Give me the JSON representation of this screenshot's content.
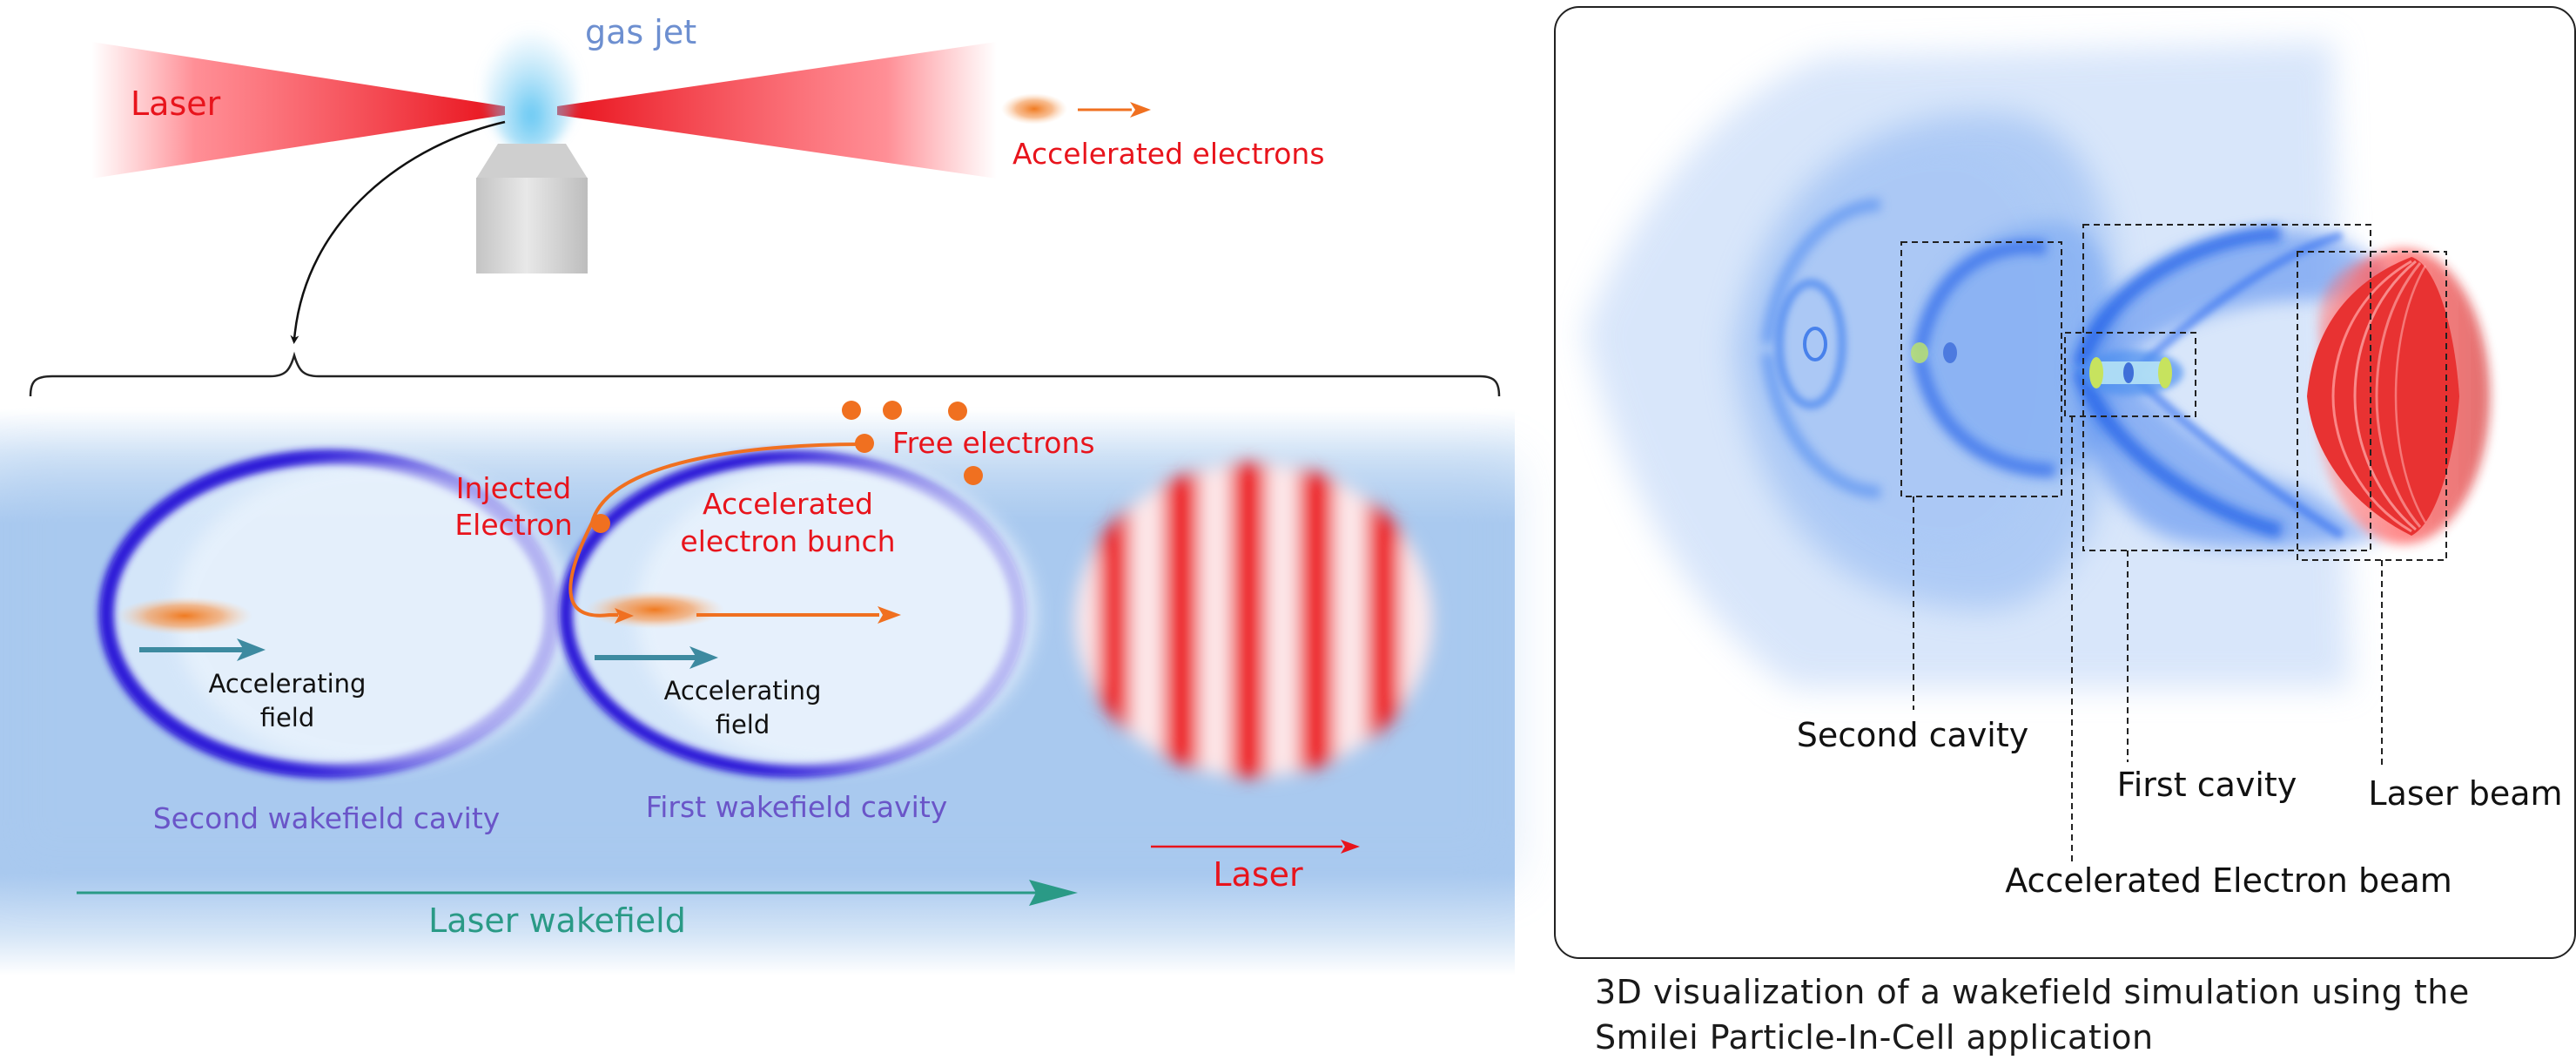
{
  "top": {
    "laser_label": "Laser",
    "gas_jet_label": "gas jet",
    "accelerated_electrons_label": "Accelerated electrons"
  },
  "left_panel": {
    "injected_electron_line1": "Injected",
    "injected_electron_line2": "Electron",
    "free_electrons_label": "Free electrons",
    "accelerated_bunch_line1": "Accelerated",
    "accelerated_bunch_line2": "electron bunch",
    "accelerating_field_line1": "Accelerating",
    "accelerating_field_line2": "field",
    "second_cavity_label": "Second wakefield cavity",
    "first_cavity_label": "First wakefield cavity",
    "laser_label": "Laser",
    "laser_wakefield_label": "Laser wakefield"
  },
  "right_panel": {
    "second_cavity_label": "Second cavity",
    "first_cavity_label": "First cavity",
    "laser_beam_label": "Laser beam",
    "accelerated_beam_label": "Accelerated Electron beam"
  },
  "caption": {
    "text": "3D visualization of a wakefield simulation using the Smilei Particle-In-Cell application"
  },
  "colors": {
    "laser_red": "#e8141c",
    "gas_jet_blue": "#6d8fd0",
    "electron_orange": "#f07020",
    "cavity_ring": "#2f1fd8",
    "cavity_text": "#6a55c8",
    "field_arrow": "#3d8aa0",
    "wakefield_green": "#2a9a86"
  }
}
